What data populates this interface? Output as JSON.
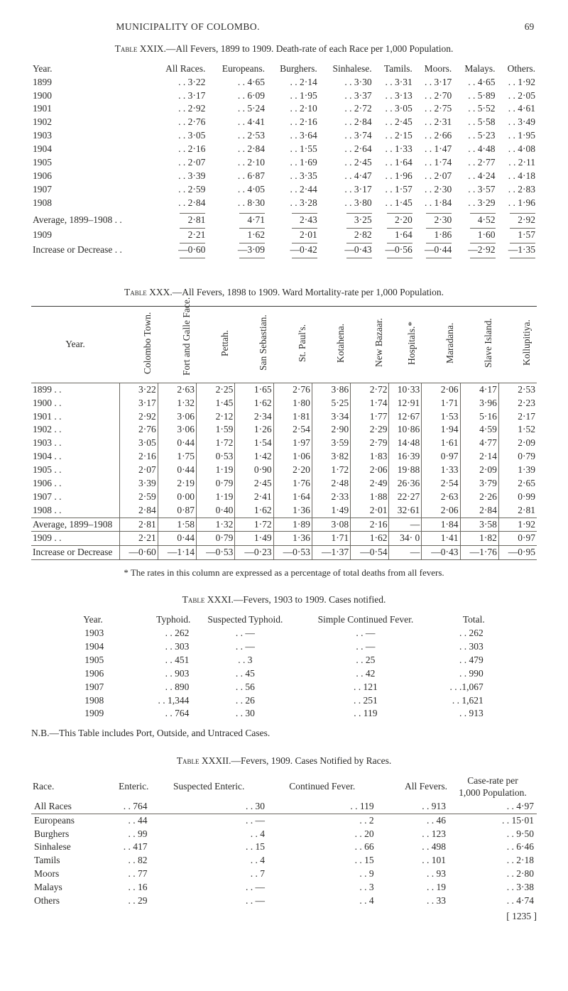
{
  "page": {
    "title": "MUNICIPALITY OF COLOMBO.",
    "number": "69"
  },
  "tXXIX": {
    "caption_a": "Table XXIX.",
    "caption_b": "—All Fevers, 1899 to 1909.   Death-rate of each Race per 1,000 Population.",
    "cols": [
      "Year.",
      "All Races.",
      "Europeans.",
      "Burghers.",
      "Sinhalese.",
      "Tamils.",
      "Moors.",
      "Malays.",
      "Others."
    ],
    "rows": [
      [
        "1899",
        "3·22",
        "4·65",
        "2·14",
        "3·30",
        "3·31",
        "3·17",
        "4·65",
        "1·92"
      ],
      [
        "1900",
        "3·17",
        "6·09",
        "1·95",
        "3·37",
        "3·13",
        "2·70",
        "5·89",
        "2·05"
      ],
      [
        "1901",
        "2·92",
        "5·24",
        "2·10",
        "2·72",
        "3·05",
        "2·75",
        "5·52",
        "4·61"
      ],
      [
        "1902",
        "2·76",
        "4·41",
        "2·16",
        "2·84",
        "2·45",
        "2·31",
        "5·58",
        "3·49"
      ],
      [
        "1903",
        "3·05",
        "2·53",
        "3·64",
        "3·74",
        "2·15",
        "2·66",
        "5·23",
        "1·95"
      ],
      [
        "1904",
        "2·16",
        "2·84",
        "1·55",
        "2·64",
        "1·33",
        "1·47",
        "4·48",
        "4·08"
      ],
      [
        "1905",
        "2·07",
        "2·10",
        "1·69",
        "2·45",
        "1·64",
        "1·74",
        "2·77",
        "2·11"
      ],
      [
        "1906",
        "3·39",
        "6·87",
        "3·35",
        "4·47",
        "1·96",
        "2·07",
        "4·24",
        "4·18"
      ],
      [
        "1907",
        "2·59",
        "4·05",
        "2·44",
        "3·17",
        "1·57",
        "2·30",
        "3·57",
        "2·83"
      ],
      [
        "1908",
        "2·84",
        "8·30",
        "3·28",
        "3·80",
        "1·45",
        "1·84",
        "3·29",
        "1·96"
      ]
    ],
    "avg_label": "Average, 1899–1908 . .",
    "avg": [
      "2·81",
      "4·71",
      "2·43",
      "3·25",
      "2·20",
      "2·30",
      "4·52",
      "2·92"
    ],
    "y1909_label": "1909",
    "y1909": [
      "2·21",
      "1·62",
      "2·01",
      "2·82",
      "1·64",
      "1·86",
      "1·60",
      "1·57"
    ],
    "incdec_label": "Increase or Decrease . .",
    "incdec": [
      "—0·60",
      "—3·09",
      "—0·42",
      "—0·43",
      "—0·56",
      "—0·44",
      "—2·92",
      "—1·35"
    ]
  },
  "tXXX": {
    "caption_a": "Table XXX.",
    "caption_b": "—All Fevers, 1898 to 1909.   Ward Mortality-rate per 1,000 Population.",
    "heads": [
      "Year.",
      "Colombo Town.",
      "Fort and Galle Face.",
      "Pettah.",
      "San Sebastian.",
      "St. Paul's.",
      "Kotahena.",
      "New Bazaar.",
      "Hospitals.*",
      "Maradana.",
      "Slave Island.",
      "Kollupitiya."
    ],
    "rows": [
      [
        "1899 . .",
        "3·22",
        "2·63",
        "2·25",
        "1·65",
        "2·76",
        "3·86",
        "2·72",
        "10·33",
        "2·06",
        "4·17",
        "2·53"
      ],
      [
        "1900 . .",
        "3·17",
        "1·32",
        "1·45",
        "1·62",
        "1·80",
        "5·25",
        "1·74",
        "12·91",
        "1·71",
        "3·96",
        "2·23"
      ],
      [
        "1901 . .",
        "2·92",
        "3·06",
        "2·12",
        "2·34",
        "1·81",
        "3·34",
        "1·77",
        "12·67",
        "1·53",
        "5·16",
        "2·17"
      ],
      [
        "1902 . .",
        "2·76",
        "3·06",
        "1·59",
        "1·26",
        "2·54",
        "2·90",
        "2·29",
        "10·86",
        "1·94",
        "4·59",
        "1·52"
      ],
      [
        "1903 . .",
        "3·05",
        "0·44",
        "1·72",
        "1·54",
        "1·97",
        "3·59",
        "2·79",
        "14·48",
        "1·61",
        "4·77",
        "2·09"
      ],
      [
        "1904 . .",
        "2·16",
        "1·75",
        "0·53",
        "1·42",
        "1·06",
        "3·82",
        "1·83",
        "16·39",
        "0·97",
        "2·14",
        "0·79"
      ],
      [
        "1905 . .",
        "2·07",
        "0·44",
        "1·19",
        "0·90",
        "2·20",
        "1·72",
        "2·06",
        "19·88",
        "1·33",
        "2·09",
        "1·39"
      ],
      [
        "1906 . .",
        "3·39",
        "2·19",
        "0·79",
        "2·45",
        "1·76",
        "2·48",
        "2·49",
        "26·36",
        "2·54",
        "3·79",
        "2·65"
      ],
      [
        "1907 . .",
        "2·59",
        "0·00",
        "1·19",
        "2·41",
        "1·64",
        "2·33",
        "1·88",
        "22·27",
        "2·63",
        "2·26",
        "0·99"
      ],
      [
        "1908 . .",
        "2·84",
        "0·87",
        "0·40",
        "1·62",
        "1·36",
        "1·49",
        "2·01",
        "32·61",
        "2·06",
        "2·84",
        "2·81"
      ]
    ],
    "avg_label": "Average, 1899–1908",
    "avg": [
      "2·81",
      "1·58",
      "1·32",
      "1·72",
      "1·89",
      "3·08",
      "2·16",
      "—",
      "1·84",
      "3·58",
      "1·92"
    ],
    "y1909_label": "1909  . .",
    "y1909": [
      "2·21",
      "0·44",
      "0·79",
      "1·49",
      "1·36",
      "1·71",
      "1·62",
      "34· 0",
      "1·41",
      "1·82",
      "0·97"
    ],
    "incdec_label": "Increase or Decrease",
    "incdec": [
      "—0·60",
      "—1·14",
      "—0·53",
      "—0·23",
      "—0·53",
      "—1·37",
      "—0·54",
      "—",
      "—0·43",
      "—1·76",
      "—0·95"
    ],
    "footnote": "* The rates in this column are expressed as a percentage of total deaths from all fevers."
  },
  "tXXXI": {
    "caption_a": "Table XXXI.",
    "caption_b": "—Fevers, 1903 to 1909.   Cases notified.",
    "heads": [
      "Year.",
      "Typhoid.",
      "Suspected Typhoid.",
      "Simple Continued Fever.",
      "Total."
    ],
    "rows": [
      [
        "1903",
        "262",
        "—",
        "—",
        "262"
      ],
      [
        "1904",
        "303",
        "—",
        "—",
        "303"
      ],
      [
        "1905",
        "451",
        "3",
        "25",
        "479"
      ],
      [
        "1906",
        "903",
        "45",
        "42",
        "990"
      ],
      [
        "1907",
        "890",
        "56",
        "121",
        ".1,067"
      ],
      [
        "1908",
        "1,344",
        "26",
        "251",
        "1,621"
      ],
      [
        "1909",
        "764",
        "30",
        "119",
        "913"
      ]
    ],
    "nb": "N.B.—This Table includes Port, Outside, and Untraced Cases."
  },
  "tXXXII": {
    "caption_a": "Table XXXII.",
    "caption_b": "—Fevers, 1909.   Cases Notified by Races.",
    "side_a": "Case-rate per",
    "side_b": "1,000 Population.",
    "heads": [
      "Race.",
      "Enteric.",
      "Suspected Enteric.",
      "Continued Fever.",
      "All Fevers."
    ],
    "allraces": [
      "All Races",
      "764",
      "30",
      "119",
      "913",
      "4·97"
    ],
    "rows": [
      [
        "Europeans",
        "44",
        "—",
        "2",
        "46",
        "15·01"
      ],
      [
        "Burghers",
        "99",
        "4",
        "20",
        "123",
        "9·50"
      ],
      [
        "Sinhalese",
        "417",
        "15",
        "66",
        "498",
        "6·46"
      ],
      [
        "Tamils",
        "82",
        "4",
        "15",
        "101",
        "2·18"
      ],
      [
        "Moors",
        "77",
        "7",
        "9",
        "93",
        "2·80"
      ],
      [
        "Malays",
        "16",
        "—",
        "3",
        "19",
        "3·38"
      ],
      [
        "Others",
        "29",
        "—",
        "4",
        "33",
        "4·74"
      ]
    ],
    "tail": "[ 1235 ]"
  }
}
